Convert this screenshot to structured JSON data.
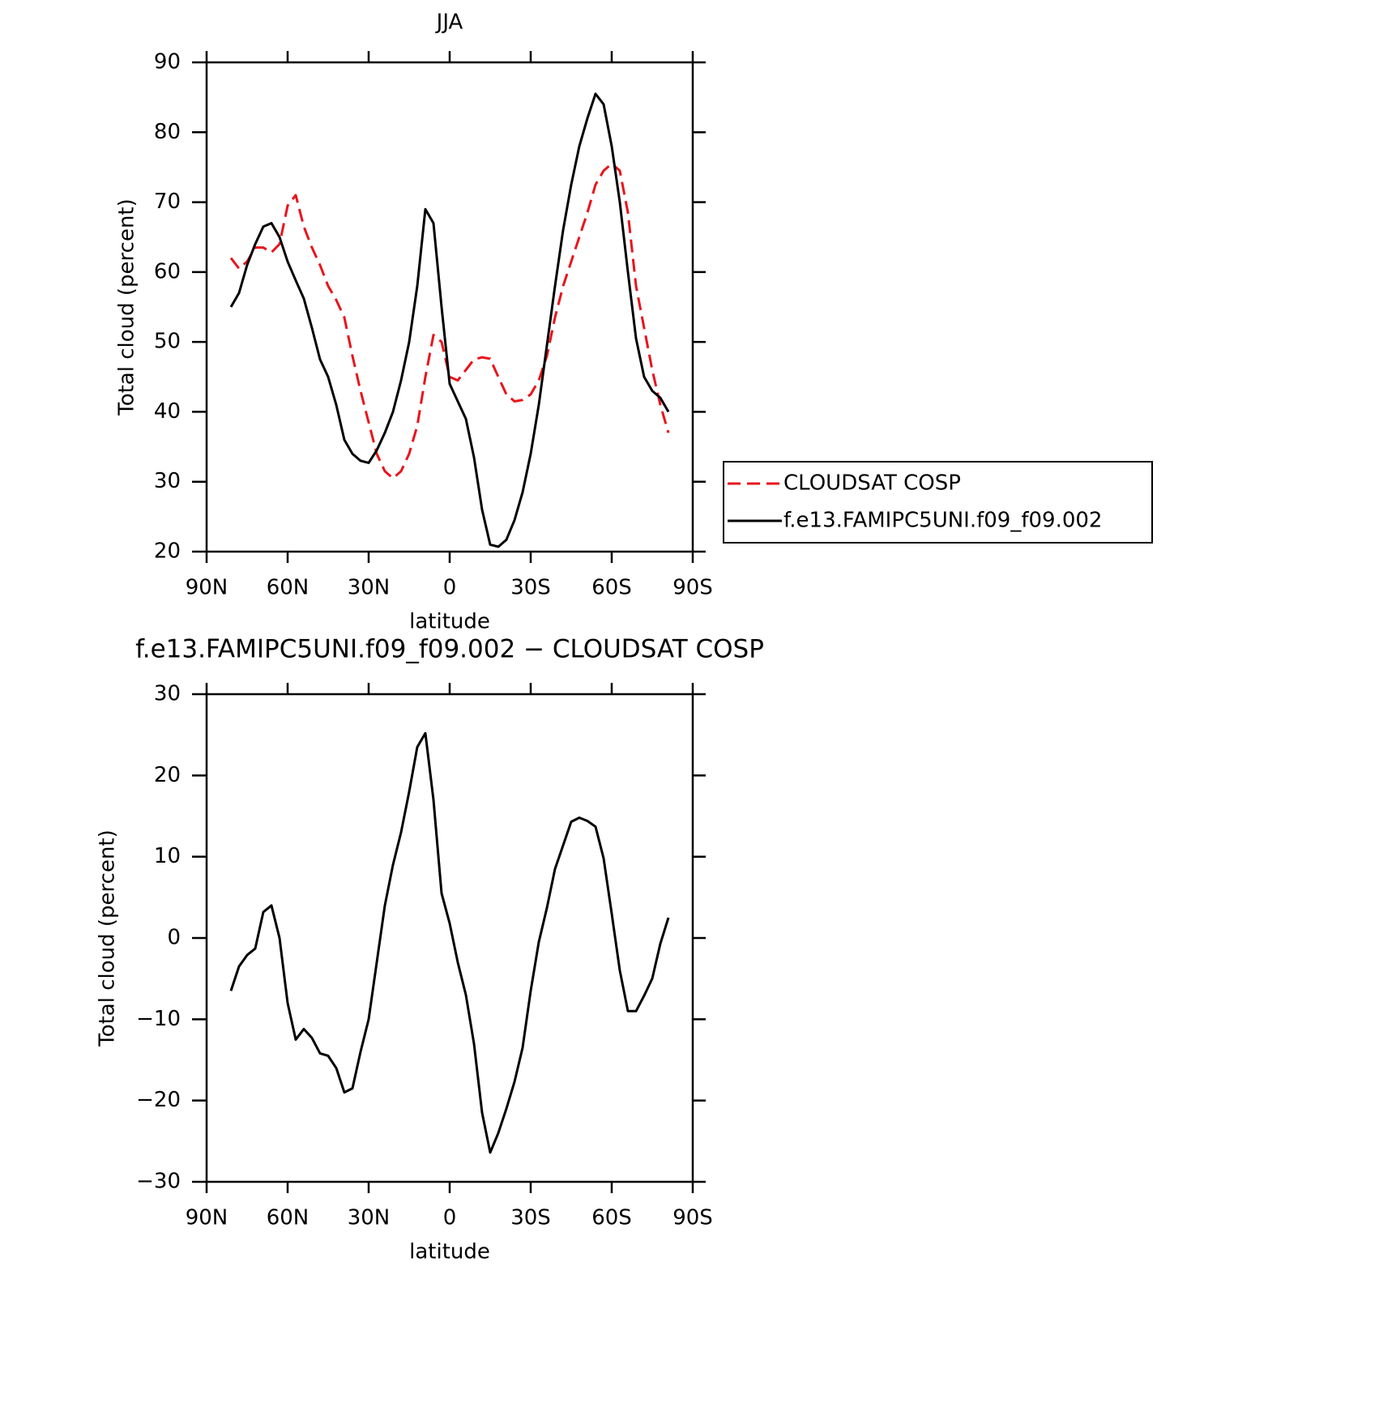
{
  "chart_data": [
    {
      "type": "line",
      "title": "JJA",
      "xlabel": "latitude",
      "ylabel": "Total cloud (percent)",
      "x": [
        81,
        78,
        75,
        72,
        69,
        66,
        63,
        60,
        57,
        54,
        51,
        48,
        45,
        42,
        39,
        36,
        33,
        30,
        27,
        24,
        21,
        18,
        15,
        12,
        9,
        6,
        3,
        0,
        -3,
        -6,
        -9,
        -12,
        -15,
        -18,
        -21,
        -24,
        -27,
        -30,
        -33,
        -36,
        -39,
        -42,
        -45,
        -48,
        -51,
        -54,
        -57,
        -60,
        -63,
        -66,
        -69,
        -72,
        -75,
        -78,
        -81
      ],
      "series": [
        {
          "name": "CLOUDSAT COSP",
          "color": "#e8141c",
          "dash": true,
          "values": [
            62,
            60.5,
            61.5,
            63.5,
            63.5,
            62.8,
            64,
            69.5,
            71,
            66.5,
            63.5,
            61,
            58,
            56,
            53.5,
            48,
            43,
            38.5,
            34,
            31.5,
            30.5,
            31.5,
            34,
            38,
            45,
            51,
            50,
            45,
            44.5,
            46,
            47.5,
            47.8,
            47.6,
            45,
            42.5,
            41.5,
            41.7,
            42.5,
            44.5,
            48,
            53.5,
            58,
            61.5,
            65,
            68.5,
            72.5,
            74.5,
            75.5,
            74.5,
            68.5,
            58,
            52,
            46,
            41,
            37
          ]
        },
        {
          "name": "f.e13.FAMIPC5UNI.f09_f09.002",
          "color": "#000000",
          "dash": false,
          "values": [
            55,
            57,
            61,
            64,
            66.5,
            67,
            65,
            61.5,
            58.8,
            56.2,
            52,
            47.5,
            45,
            41,
            36,
            34,
            33,
            32.7,
            34.5,
            37,
            40,
            44.5,
            50,
            58,
            69,
            67,
            55,
            44,
            41.5,
            39,
            33.5,
            26,
            21,
            20.7,
            21.7,
            24.5,
            28.5,
            34,
            41,
            49.5,
            58,
            66,
            72.5,
            78,
            82,
            85.5,
            84,
            78,
            70,
            60,
            50.5,
            45,
            43,
            42,
            40
          ]
        }
      ],
      "xlim": [
        90,
        -90
      ],
      "xticks": [
        {
          "value": 90,
          "label": "90N"
        },
        {
          "value": 60,
          "label": "60N"
        },
        {
          "value": 30,
          "label": "30N"
        },
        0,
        {
          "value": -30,
          "label": "30S"
        },
        {
          "value": -60,
          "label": "60S"
        },
        {
          "value": -90,
          "label": "90S"
        }
      ],
      "ylim": [
        20,
        90
      ],
      "yticks": [
        20,
        30,
        40,
        50,
        60,
        70,
        80,
        90
      ],
      "legend": "right"
    },
    {
      "type": "line",
      "title": "f.e13.FAMIPC5UNI.f09_f09.002 − CLOUDSAT COSP",
      "xlabel": "latitude",
      "ylabel": "Total cloud (percent)",
      "x": [
        81,
        78,
        75,
        72,
        69,
        66,
        63,
        60,
        57,
        54,
        51,
        48,
        45,
        42,
        39,
        36,
        33,
        30,
        27,
        24,
        21,
        18,
        15,
        12,
        9,
        6,
        3,
        0,
        -3,
        -6,
        -9,
        -12,
        -15,
        -18,
        -21,
        -24,
        -27,
        -30,
        -33,
        -36,
        -39,
        -42,
        -45,
        -48,
        -51,
        -54,
        -57,
        -60,
        -63,
        -66,
        -69,
        -72,
        -75,
        -78,
        -81
      ],
      "series": [
        {
          "color": "#000000",
          "dash": false,
          "values": [
            -6.5,
            -3.5,
            -2.1,
            -1.3,
            3.2,
            4,
            0,
            -8,
            -12.5,
            -11.2,
            -12.3,
            -14.2,
            -14.5,
            -16,
            -19,
            -18.5,
            -14,
            -10,
            -3,
            4,
            9,
            13,
            18,
            23.5,
            25.2,
            17,
            5.5,
            1.8,
            -3,
            -7,
            -13,
            -21.5,
            -26.4,
            -24,
            -21,
            -17.7,
            -13.5,
            -6.5,
            -0.5,
            3.7,
            8.5,
            11.4,
            14.3,
            14.8,
            14.4,
            13.7,
            9.8,
            3,
            -4,
            -9,
            -9,
            -7.1,
            -5,
            -0.7,
            2.5
          ]
        }
      ],
      "xlim": [
        90,
        -90
      ],
      "xticks": [
        {
          "value": 90,
          "label": "90N"
        },
        {
          "value": 60,
          "label": "60N"
        },
        {
          "value": 30,
          "label": "30N"
        },
        0,
        {
          "value": -30,
          "label": "30S"
        },
        {
          "value": -60,
          "label": "60S"
        },
        {
          "value": -90,
          "label": "90S"
        }
      ],
      "ylim": [
        -30,
        30
      ],
      "yticks": [
        {
          "value": -30,
          "label": "−30"
        },
        {
          "value": -20,
          "label": "−20"
        },
        {
          "value": -10,
          "label": "−10"
        },
        0,
        10,
        20,
        30
      ]
    }
  ]
}
